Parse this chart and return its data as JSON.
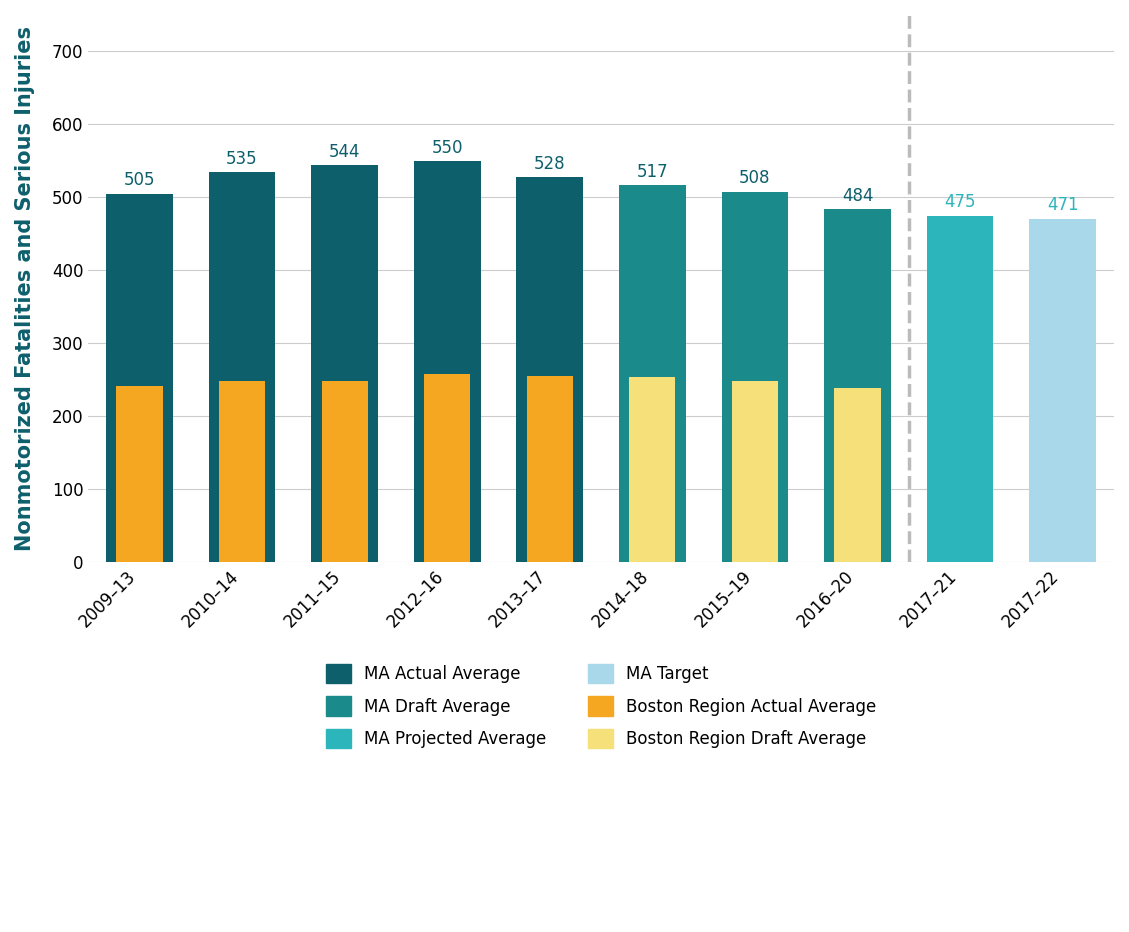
{
  "categories": [
    "2009–13",
    "2010–14",
    "2011–15",
    "2012–16",
    "2013–17",
    "2014–18",
    "2015–19",
    "2016–20",
    "2017–21",
    "2017–22"
  ],
  "ma_values": [
    505,
    535,
    544,
    550,
    528,
    517,
    508,
    484,
    475,
    471
  ],
  "boston_values": [
    242,
    249,
    248,
    258,
    255,
    254,
    248,
    239,
    null,
    null
  ],
  "bar_types": [
    "actual",
    "actual",
    "actual",
    "actual",
    "actual",
    "draft",
    "draft",
    "draft",
    "projected",
    "target"
  ],
  "boston_types": [
    "actual",
    "actual",
    "actual",
    "actual",
    "actual",
    "draft",
    "draft",
    "draft",
    null,
    null
  ],
  "colors": {
    "ma_actual": "#0e5f6c",
    "ma_draft": "#1a8a8a",
    "ma_projected": "#2db5bc",
    "ma_target": "#a8d8ea",
    "boston_actual": "#f5a722",
    "boston_draft": "#f5e07a"
  },
  "ylabel": "Nonmotorized Fatalities and Serious Injuries",
  "ylim": [
    0,
    750
  ],
  "yticks": [
    0,
    100,
    200,
    300,
    400,
    500,
    600,
    700
  ],
  "dashed_line_after_index": 7,
  "legend_entries_col1": [
    {
      "label": "MA Actual Average",
      "color": "#0e5f6c"
    },
    {
      "label": "MA Projected Average",
      "color": "#2db5bc"
    },
    {
      "label": "Boston Region Actual Average",
      "color": "#f5a722"
    }
  ],
  "legend_entries_col2": [
    {
      "label": "MA Draft Average",
      "color": "#1a8a8a"
    },
    {
      "label": "MA Target",
      "color": "#a8d8ea"
    },
    {
      "label": "Boston Region Draft Average",
      "color": "#f5e07a"
    }
  ],
  "ma_bar_width": 0.65,
  "boston_bar_width": 0.45,
  "label_fontsize": 12,
  "ylabel_fontsize": 15,
  "tick_fontsize": 12,
  "legend_fontsize": 12,
  "background_color": "#ffffff",
  "grid_color": "#cccccc",
  "ylabel_color": "#0e5f6c",
  "value_label_color_white": "#ffffff",
  "value_label_color_teal": "#1a8a8a",
  "dashed_color": "#bbbbbb"
}
